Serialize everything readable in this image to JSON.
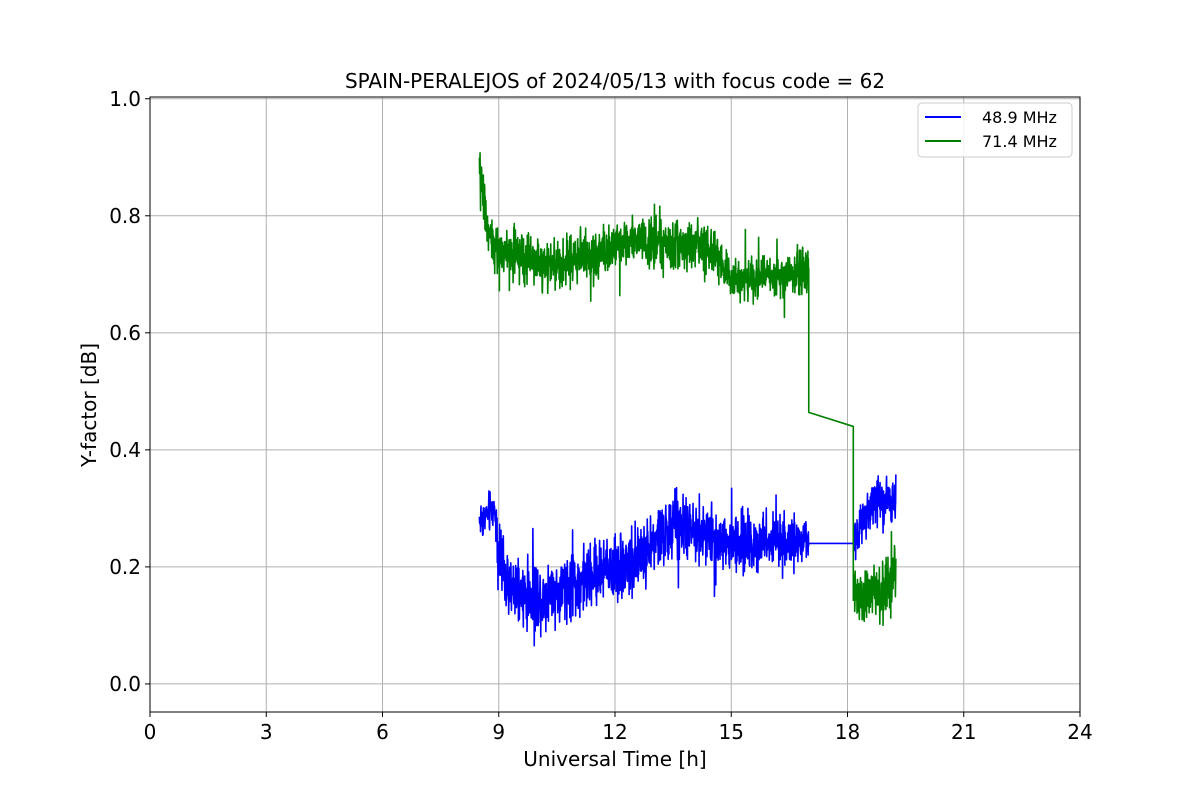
{
  "chart_data": {
    "type": "line",
    "title": "SPAIN-PERALEJOS of 2024/05/13 with focus code = 62",
    "xlabel": "Universal Time [h]",
    "ylabel": "Y-factor [dB]",
    "xlim": [
      0,
      24
    ],
    "ylim": [
      -0.048,
      1.003
    ],
    "xticks": [
      0,
      3,
      6,
      9,
      12,
      15,
      18,
      21,
      24
    ],
    "xtick_labels": [
      "0",
      "3",
      "6",
      "9",
      "12",
      "15",
      "18",
      "21",
      "24"
    ],
    "yticks": [
      0.0,
      0.2,
      0.4,
      0.6,
      0.8,
      1.0
    ],
    "ytick_labels": [
      "0.0",
      "0.2",
      "0.4",
      "0.6",
      "0.8",
      "1.0"
    ],
    "grid": true,
    "legend_position": "top-right",
    "series": [
      {
        "name": "48.9 MHz",
        "color": "#0000ff",
        "x": [
          8.5,
          8.7,
          8.9,
          9.0,
          9.2,
          9.5,
          10.0,
          10.5,
          11.0,
          11.5,
          12.0,
          12.5,
          13.0,
          13.5,
          14.0,
          14.5,
          15.0,
          15.5,
          16.0,
          16.5,
          17.0,
          18.15,
          18.3,
          18.6,
          18.9,
          19.25
        ],
        "y": [
          0.28,
          0.29,
          0.3,
          0.22,
          0.17,
          0.15,
          0.15,
          0.16,
          0.17,
          0.19,
          0.2,
          0.21,
          0.24,
          0.27,
          0.26,
          0.25,
          0.24,
          0.24,
          0.25,
          0.24,
          0.24,
          0.24,
          0.27,
          0.31,
          0.32,
          0.31
        ],
        "noise_amplitude": [
          0.05,
          0.05,
          0.05,
          0.07,
          0.08,
          0.08,
          0.08,
          0.08,
          0.08,
          0.08,
          0.08,
          0.08,
          0.08,
          0.08,
          0.07,
          0.07,
          0.07,
          0.07,
          0.06,
          0.06,
          0.05,
          0.05,
          0.06,
          0.06,
          0.06,
          0.06
        ],
        "gap": [
          17.0,
          18.15
        ]
      },
      {
        "name": "71.4 MHz",
        "color": "#008000",
        "x": [
          8.5,
          8.6,
          8.75,
          9.0,
          9.5,
          10.0,
          10.5,
          11.0,
          11.5,
          12.0,
          12.5,
          13.0,
          13.5,
          14.0,
          14.5,
          15.0,
          15.5,
          16.0,
          16.5,
          17.0,
          18.15,
          18.3,
          18.6,
          18.9,
          19.25
        ],
        "y": [
          0.87,
          0.84,
          0.76,
          0.74,
          0.73,
          0.72,
          0.72,
          0.73,
          0.73,
          0.75,
          0.76,
          0.75,
          0.75,
          0.75,
          0.74,
          0.69,
          0.69,
          0.7,
          0.7,
          0.71,
          0.15,
          0.15,
          0.15,
          0.16,
          0.18
        ],
        "noise_amplitude": [
          0.06,
          0.06,
          0.06,
          0.06,
          0.06,
          0.06,
          0.06,
          0.06,
          0.06,
          0.06,
          0.06,
          0.06,
          0.06,
          0.06,
          0.06,
          0.05,
          0.05,
          0.05,
          0.05,
          0.05,
          0.07,
          0.07,
          0.07,
          0.07,
          0.07
        ],
        "gap": [
          17.0,
          18.15
        ],
        "gap_path": [
          [
            17.0,
            0.71
          ],
          [
            17.0,
            0.464
          ],
          [
            18.15,
            0.44
          ]
        ]
      }
    ]
  }
}
